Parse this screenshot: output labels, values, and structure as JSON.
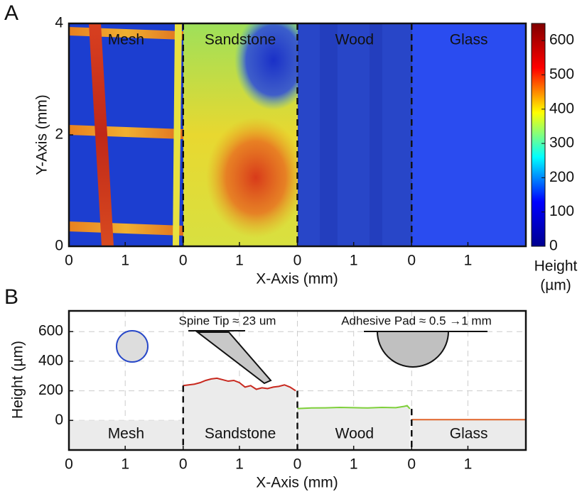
{
  "chart_data": [
    {
      "type": "heatmap",
      "panel_label": "A",
      "segments": [
        "Mesh",
        "Sandstone",
        "Wood",
        "Glass"
      ],
      "xlabel": "X-Axis (mm)",
      "ylabel": "Y-Axis (mm)",
      "xlim": [
        0,
        2.03
      ],
      "xticks": [
        0,
        1
      ],
      "ylim": [
        0,
        4
      ],
      "yticks": [
        0,
        2,
        4
      ],
      "clim": [
        0,
        650
      ],
      "cticks": [
        0,
        100,
        200,
        300,
        400,
        500,
        600
      ],
      "colorbar_label": [
        "Height",
        "(µm)"
      ],
      "colormap": [
        "#00008f",
        "#0000ff",
        "#00ffff",
        "#ffff00",
        "#ff0000",
        "#800000"
      ]
    },
    {
      "type": "line",
      "panel_label": "B",
      "segments": [
        "Mesh",
        "Sandstone",
        "Wood",
        "Glass"
      ],
      "xlabel": "X-Axis (mm)",
      "ylabel": "Height (µm)",
      "xlim": [
        0,
        2.03
      ],
      "xticks": [
        0,
        1
      ],
      "ylim": [
        -200,
        740
      ],
      "yticks": [
        0,
        200,
        400,
        600
      ],
      "grid": true,
      "series": [
        {
          "segment": 1,
          "color": "#c8281e",
          "x": [
            0,
            0.1,
            0.2,
            0.3,
            0.4,
            0.5,
            0.6,
            0.7,
            0.8,
            0.9,
            1.0,
            1.1,
            1.2,
            1.3,
            1.4,
            1.5,
            1.6,
            1.7,
            1.8,
            1.9,
            2.0
          ],
          "values": [
            235,
            240,
            245,
            255,
            270,
            280,
            285,
            275,
            265,
            270,
            255,
            225,
            235,
            210,
            220,
            215,
            225,
            230,
            240,
            225,
            200
          ]
        },
        {
          "segment": 2,
          "color": "#7ed03a",
          "x": [
            0,
            0.25,
            0.5,
            0.75,
            1.0,
            1.25,
            1.5,
            1.75,
            1.9,
            1.95,
            2.0
          ],
          "values": [
            80,
            84,
            85,
            88,
            86,
            84,
            88,
            86,
            95,
            100,
            78
          ]
        },
        {
          "segment": 3,
          "color": "#e0642a",
          "x": [
            0,
            2.03
          ],
          "values": [
            5,
            5
          ]
        }
      ],
      "annotations": [
        "Spine Tip ≈ 23 um",
        "Adhesive Pad ≈  0.5 →1 mm"
      ]
    }
  ]
}
